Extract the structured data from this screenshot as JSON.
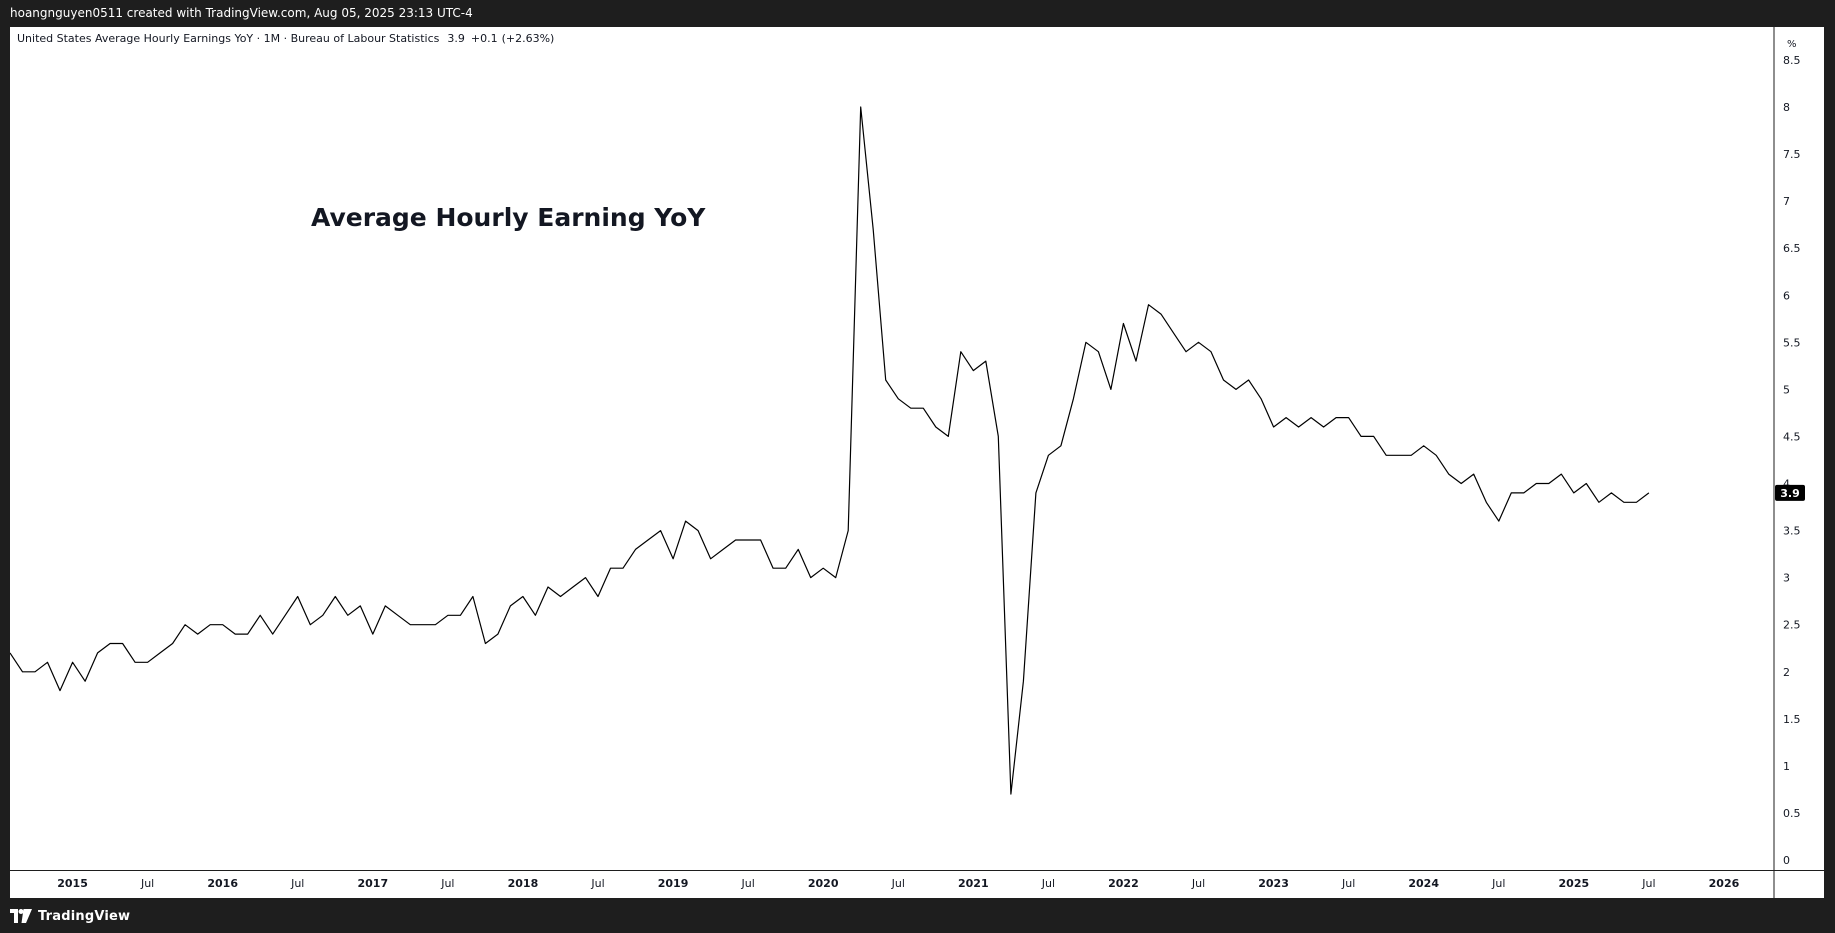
{
  "header": {
    "credit": "hoangnguyen0511 created with TradingView.com, Aug 05, 2025 23:13 UTC-4"
  },
  "footer": {
    "brand": "TradingView",
    "logo_icon": "tradingview-logo-icon"
  },
  "colors": {
    "frame": "#1e1e1e",
    "plot_bg": "#ffffff",
    "line": "#000000",
    "price_tag_bg": "#000000",
    "price_tag_text": "#ffffff"
  },
  "chart_data": {
    "type": "line",
    "series_label": "United States Average Hourly Earnings YoY · 1M · Bureau of Labour Statistics",
    "last_value": "3.9",
    "change": "+0.1",
    "change_pct": "(+2.63%)",
    "annotation": "Average Hourly Earning YoY",
    "y_unit": "%",
    "ylim": [
      0,
      8.7
    ],
    "yticks": [
      0,
      0.5,
      1,
      1.5,
      2,
      2.5,
      3,
      3.5,
      4,
      4.5,
      5,
      5.5,
      6,
      6.5,
      7,
      7.5,
      8,
      8.5
    ],
    "ytick_labels": [
      "0",
      "0.5",
      "1",
      "1.5",
      "2",
      "2.5",
      "3",
      "3.5",
      "4",
      "4.5",
      "5",
      "5.5",
      "6",
      "6.5",
      "7",
      "7.5",
      "8",
      "8.5"
    ],
    "xlim": [
      "2014-08",
      "2026-05"
    ],
    "xticks": [
      {
        "date": "2015-01",
        "label": "2015",
        "major": true
      },
      {
        "date": "2015-07",
        "label": "Jul",
        "major": false
      },
      {
        "date": "2016-01",
        "label": "2016",
        "major": true
      },
      {
        "date": "2016-07",
        "label": "Jul",
        "major": false
      },
      {
        "date": "2017-01",
        "label": "2017",
        "major": true
      },
      {
        "date": "2017-07",
        "label": "Jul",
        "major": false
      },
      {
        "date": "2018-01",
        "label": "2018",
        "major": true
      },
      {
        "date": "2018-07",
        "label": "Jul",
        "major": false
      },
      {
        "date": "2019-01",
        "label": "2019",
        "major": true
      },
      {
        "date": "2019-07",
        "label": "Jul",
        "major": false
      },
      {
        "date": "2020-01",
        "label": "2020",
        "major": true
      },
      {
        "date": "2020-07",
        "label": "Jul",
        "major": false
      },
      {
        "date": "2021-01",
        "label": "2021",
        "major": true
      },
      {
        "date": "2021-07",
        "label": "Jul",
        "major": false
      },
      {
        "date": "2022-01",
        "label": "2022",
        "major": true
      },
      {
        "date": "2022-07",
        "label": "Jul",
        "major": false
      },
      {
        "date": "2023-01",
        "label": "2023",
        "major": true
      },
      {
        "date": "2023-07",
        "label": "Jul",
        "major": false
      },
      {
        "date": "2024-01",
        "label": "2024",
        "major": true
      },
      {
        "date": "2024-07",
        "label": "Jul",
        "major": false
      },
      {
        "date": "2025-01",
        "label": "2025",
        "major": true
      },
      {
        "date": "2025-07",
        "label": "Jul",
        "major": false
      },
      {
        "date": "2026-01",
        "label": "2026",
        "major": true
      }
    ],
    "grid": false,
    "legend": "top-left",
    "x": [
      "2014-08",
      "2014-09",
      "2014-10",
      "2014-11",
      "2014-12",
      "2015-01",
      "2015-02",
      "2015-03",
      "2015-04",
      "2015-05",
      "2015-06",
      "2015-07",
      "2015-08",
      "2015-09",
      "2015-10",
      "2015-11",
      "2015-12",
      "2016-01",
      "2016-02",
      "2016-03",
      "2016-04",
      "2016-05",
      "2016-06",
      "2016-07",
      "2016-08",
      "2016-09",
      "2016-10",
      "2016-11",
      "2016-12",
      "2017-01",
      "2017-02",
      "2017-03",
      "2017-04",
      "2017-05",
      "2017-06",
      "2017-07",
      "2017-08",
      "2017-09",
      "2017-10",
      "2017-11",
      "2017-12",
      "2018-01",
      "2018-02",
      "2018-03",
      "2018-04",
      "2018-05",
      "2018-06",
      "2018-07",
      "2018-08",
      "2018-09",
      "2018-10",
      "2018-11",
      "2018-12",
      "2019-01",
      "2019-02",
      "2019-03",
      "2019-04",
      "2019-05",
      "2019-06",
      "2019-07",
      "2019-08",
      "2019-09",
      "2019-10",
      "2019-11",
      "2019-12",
      "2020-01",
      "2020-02",
      "2020-03",
      "2020-04",
      "2020-05",
      "2020-06",
      "2020-07",
      "2020-08",
      "2020-09",
      "2020-10",
      "2020-11",
      "2020-12",
      "2021-01",
      "2021-02",
      "2021-03",
      "2021-04",
      "2021-05",
      "2021-06",
      "2021-07",
      "2021-08",
      "2021-09",
      "2021-10",
      "2021-11",
      "2021-12",
      "2022-01",
      "2022-02",
      "2022-03",
      "2022-04",
      "2022-05",
      "2022-06",
      "2022-07",
      "2022-08",
      "2022-09",
      "2022-10",
      "2022-11",
      "2022-12",
      "2023-01",
      "2023-02",
      "2023-03",
      "2023-04",
      "2023-05",
      "2023-06",
      "2023-07",
      "2023-08",
      "2023-09",
      "2023-10",
      "2023-11",
      "2023-12",
      "2024-01",
      "2024-02",
      "2024-03",
      "2024-04",
      "2024-05",
      "2024-06",
      "2024-07",
      "2024-08",
      "2024-09",
      "2024-10",
      "2024-11",
      "2024-12",
      "2025-01",
      "2025-02",
      "2025-03",
      "2025-04",
      "2025-05",
      "2025-06",
      "2025-07"
    ],
    "y": [
      2.2,
      2.0,
      2.0,
      2.1,
      1.8,
      2.1,
      1.9,
      2.2,
      2.3,
      2.3,
      2.1,
      2.1,
      2.2,
      2.3,
      2.5,
      2.4,
      2.5,
      2.5,
      2.4,
      2.4,
      2.6,
      2.4,
      2.6,
      2.8,
      2.5,
      2.6,
      2.8,
      2.6,
      2.7,
      2.4,
      2.7,
      2.6,
      2.5,
      2.5,
      2.5,
      2.6,
      2.6,
      2.8,
      2.3,
      2.4,
      2.7,
      2.8,
      2.6,
      2.9,
      2.8,
      2.9,
      3.0,
      2.8,
      3.1,
      3.1,
      3.3,
      3.4,
      3.5,
      3.2,
      3.6,
      3.5,
      3.2,
      3.3,
      3.4,
      3.4,
      3.4,
      3.1,
      3.1,
      3.3,
      3.0,
      3.1,
      3.0,
      3.5,
      8.0,
      6.7,
      5.1,
      4.9,
      4.8,
      4.8,
      4.6,
      4.5,
      5.4,
      5.2,
      5.3,
      4.5,
      0.7,
      1.9,
      3.9,
      4.3,
      4.4,
      4.9,
      5.5,
      5.4,
      5.0,
      5.7,
      5.3,
      5.9,
      5.8,
      5.6,
      5.4,
      5.5,
      5.4,
      5.1,
      5.0,
      5.1,
      4.9,
      4.6,
      4.7,
      4.6,
      4.7,
      4.6,
      4.7,
      4.7,
      4.5,
      4.5,
      4.3,
      4.3,
      4.3,
      4.4,
      4.3,
      4.1,
      4.0,
      4.1,
      3.8,
      3.6,
      3.9,
      3.9,
      4.0,
      4.0,
      4.1,
      3.9,
      4.0,
      3.8,
      3.9,
      3.8,
      3.8,
      3.9
    ]
  }
}
